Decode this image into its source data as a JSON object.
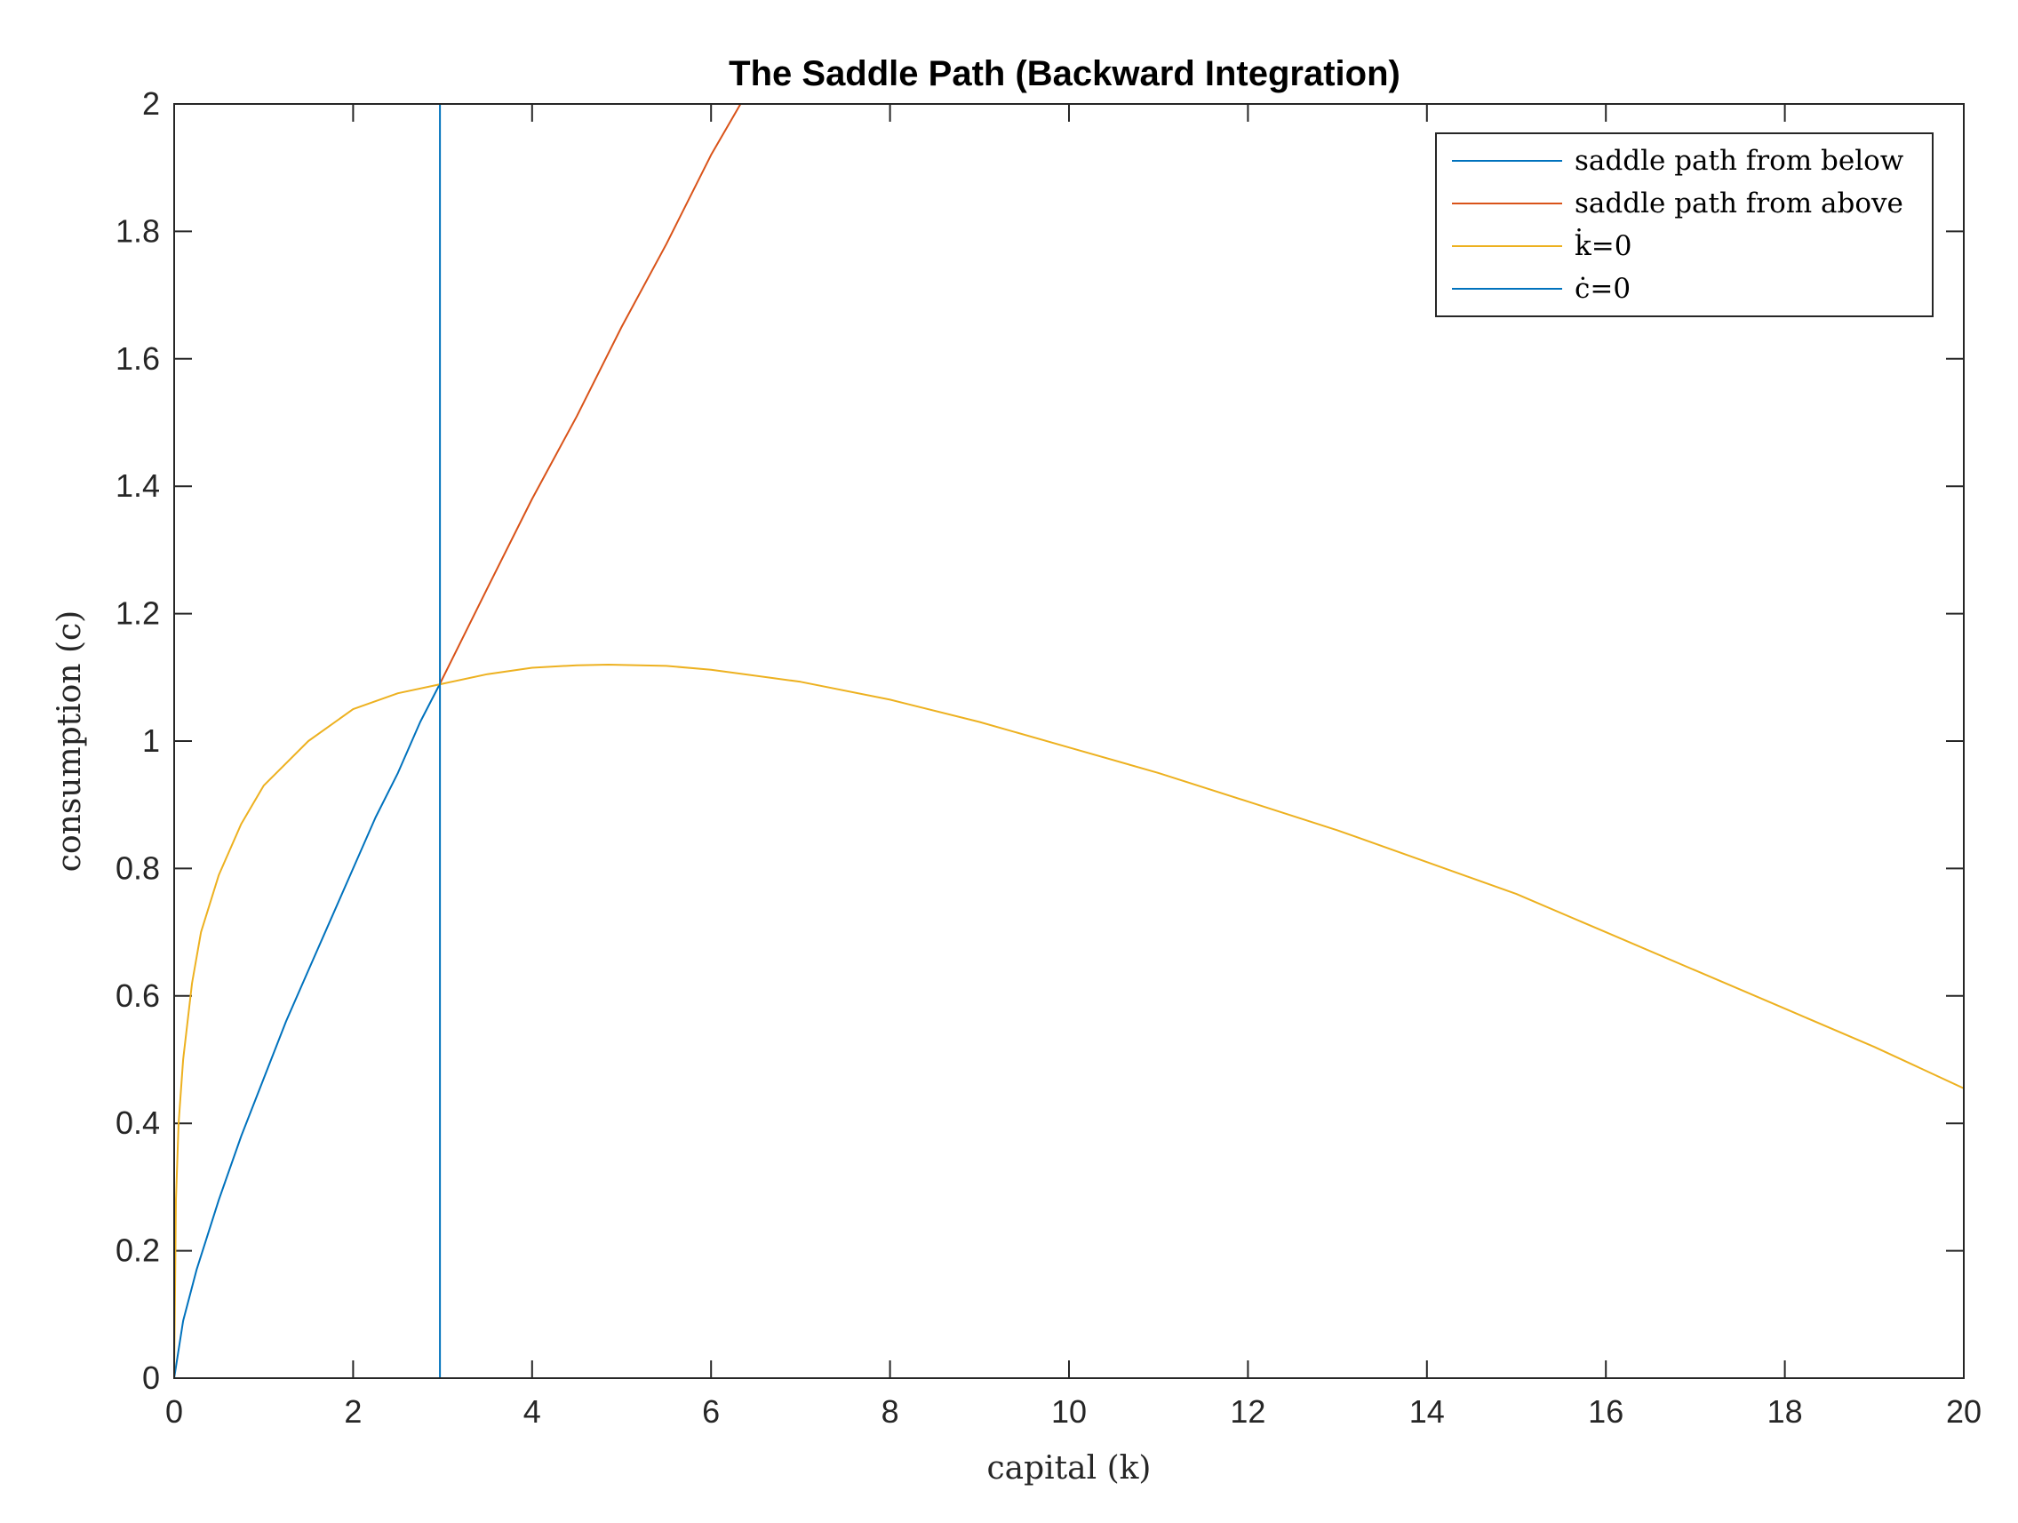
{
  "chart_data": {
    "type": "line",
    "title": "The Saddle Path (Backward Integration)",
    "xlabel": "capital (k)",
    "ylabel": "consumption (c)",
    "xlim": [
      0,
      20
    ],
    "ylim": [
      0,
      2
    ],
    "xticks": [
      "0",
      "2",
      "4",
      "6",
      "8",
      "10",
      "12",
      "14",
      "16",
      "18",
      "20"
    ],
    "yticks": [
      "0",
      "0.2",
      "0.4",
      "0.6",
      "0.8",
      "1",
      "1.2",
      "1.4",
      "1.6",
      "1.8",
      "2"
    ],
    "grid": false,
    "legend_position": "top-right",
    "series": [
      {
        "name": "saddle path from below",
        "color": "#0072BD",
        "x": [
          0,
          0.1,
          0.25,
          0.5,
          0.75,
          1.0,
          1.25,
          1.5,
          1.75,
          2.0,
          2.25,
          2.5,
          2.75,
          2.97
        ],
        "y": [
          0,
          0.09,
          0.17,
          0.28,
          0.38,
          0.47,
          0.56,
          0.64,
          0.72,
          0.8,
          0.88,
          0.95,
          1.03,
          1.09
        ]
      },
      {
        "name": "saddle path from above",
        "color": "#D95319",
        "x": [
          2.97,
          3.5,
          4.0,
          4.5,
          5.0,
          5.5,
          6.0,
          6.33
        ],
        "y": [
          1.09,
          1.24,
          1.38,
          1.51,
          1.65,
          1.78,
          1.92,
          2.0
        ]
      },
      {
        "name": "k̇=0",
        "color": "#EDB120",
        "x": [
          0,
          0.02,
          0.05,
          0.1,
          0.2,
          0.3,
          0.5,
          0.75,
          1.0,
          1.5,
          2.0,
          2.5,
          3.0,
          3.5,
          4.0,
          4.5,
          4.85,
          5.5,
          6.0,
          7.0,
          8.0,
          9.0,
          10.0,
          11.0,
          12.0,
          13.0,
          14.0,
          15.0,
          16.0,
          17.0,
          18.0,
          19.0,
          20.0
        ],
        "y": [
          0,
          0.28,
          0.4,
          0.5,
          0.62,
          0.7,
          0.79,
          0.87,
          0.93,
          1.0,
          1.05,
          1.075,
          1.09,
          1.105,
          1.115,
          1.119,
          1.12,
          1.118,
          1.112,
          1.093,
          1.065,
          1.03,
          0.99,
          0.95,
          0.905,
          0.86,
          0.81,
          0.76,
          0.7,
          0.64,
          0.58,
          0.52,
          0.455
        ]
      },
      {
        "name": "ċ=0",
        "color": "#0072BD",
        "x": [
          2.97,
          2.97
        ],
        "y": [
          0,
          2
        ]
      }
    ]
  }
}
